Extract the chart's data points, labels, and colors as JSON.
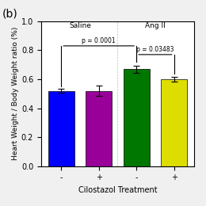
{
  "title_b": "(b)",
  "bar_values": [
    0.52,
    0.52,
    0.67,
    0.6
  ],
  "bar_errors": [
    0.015,
    0.035,
    0.025,
    0.018
  ],
  "bar_colors": [
    "#0000FF",
    "#990099",
    "#007700",
    "#DDDD00"
  ],
  "bar_labels": [
    "-",
    "+",
    "-",
    "+"
  ],
  "xlabel": "Cilostazol Treatment",
  "ylabel": "Heart Weight / Body Weight ratio (%)",
  "ylim": [
    0.0,
    1.0
  ],
  "yticks": [
    0.0,
    0.2,
    0.4,
    0.6,
    0.8,
    1.0
  ],
  "group_labels": [
    "Saline",
    "Ang II"
  ],
  "p_values": [
    "p = 0.0001",
    "p = 0.03483"
  ],
  "background_color": "#f0f0f0"
}
